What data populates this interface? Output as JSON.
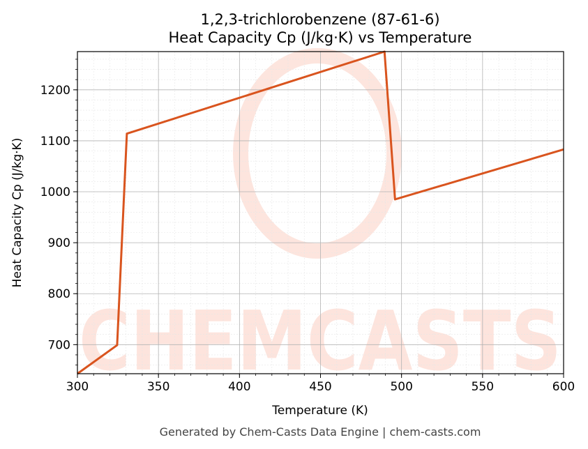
{
  "chart_data": {
    "type": "line",
    "title": "1,2,3-trichlorobenzene (87-61-6)",
    "subtitle": "Heat Capacity Cp (J/kg·K) vs Temperature",
    "xlabel": "Temperature (K)",
    "ylabel": "Heat Capacity Cp (J/kg·K)",
    "xlim": [
      300,
      600
    ],
    "ylim": [
      643,
      1275
    ],
    "xticks": [
      300,
      350,
      400,
      450,
      500,
      550,
      600
    ],
    "yticks": [
      700,
      800,
      900,
      1000,
      1100,
      1200
    ],
    "grid": true,
    "series": [
      {
        "color": "#d9541e",
        "x": [
          300,
          324.5,
          330.5,
          489.5,
          496,
          600
        ],
        "y": [
          643,
          699,
          1114,
          1275,
          985,
          1083
        ]
      }
    ]
  },
  "watermark": {
    "text": "CHEMCASTS",
    "color": "#fde0d8"
  },
  "footer": "Generated by Chem-Casts Data Engine | chem-casts.com"
}
